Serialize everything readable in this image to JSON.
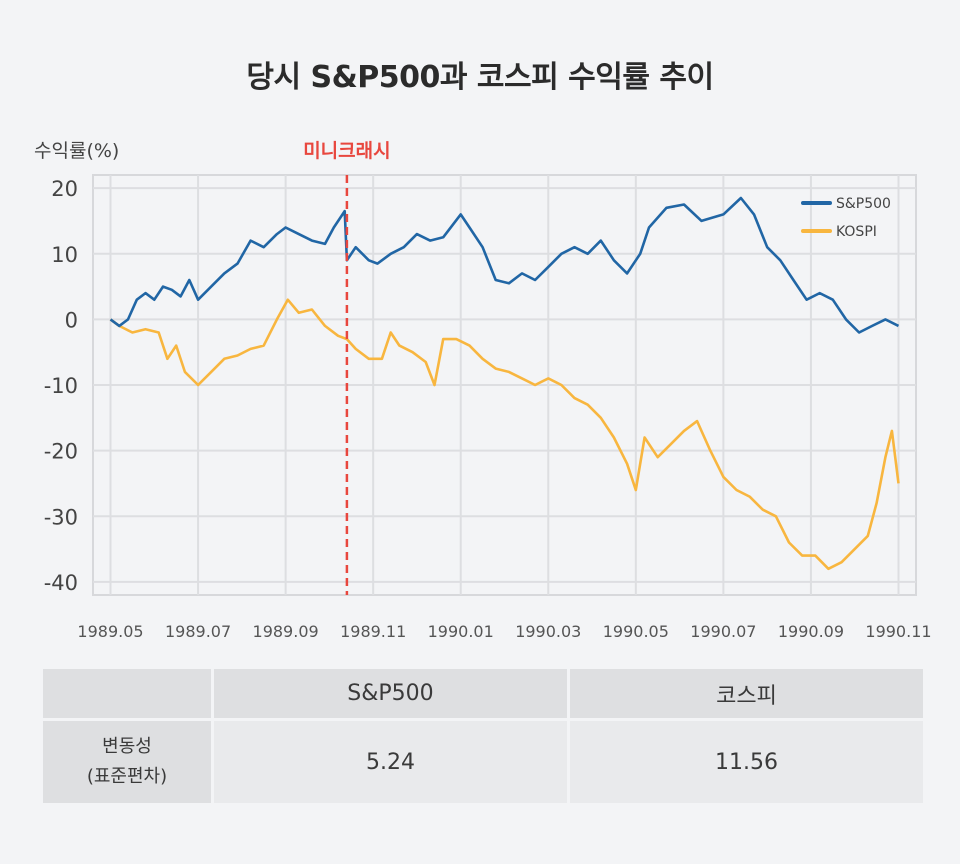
{
  "title": "당시 S&P500과 코스피 수익률 추이",
  "chart_data": {
    "type": "line",
    "ylabel": "수익률(%)",
    "ylim": [
      -42,
      22
    ],
    "yticks": [
      20,
      10,
      0,
      -10,
      -20,
      -30,
      -40
    ],
    "xlim": [
      -0.4,
      18.4
    ],
    "xticks": [
      {
        "value": 0,
        "label": "1989.05"
      },
      {
        "value": 2,
        "label": "1989.07"
      },
      {
        "value": 4,
        "label": "1989.09"
      },
      {
        "value": 6,
        "label": "1989.11"
      },
      {
        "value": 8,
        "label": "1990.01"
      },
      {
        "value": 10,
        "label": "1990.03"
      },
      {
        "value": 12,
        "label": "1990.05"
      },
      {
        "value": 14,
        "label": "1990.07"
      },
      {
        "value": 16,
        "label": "1990.09"
      },
      {
        "value": 18,
        "label": "1990.11"
      }
    ],
    "grid": true,
    "legend_position": "top-right",
    "annotation": {
      "x": 5.4,
      "label": "미니크래시",
      "color": "#e8473e"
    },
    "series": [
      {
        "name": "S&P500",
        "color": "#2166a5",
        "points": [
          [
            0,
            0
          ],
          [
            0.2,
            -1
          ],
          [
            0.4,
            0
          ],
          [
            0.6,
            3
          ],
          [
            0.8,
            4
          ],
          [
            1,
            3
          ],
          [
            1.2,
            5
          ],
          [
            1.4,
            4.5
          ],
          [
            1.6,
            3.5
          ],
          [
            1.8,
            6
          ],
          [
            2,
            3
          ],
          [
            2.3,
            5
          ],
          [
            2.6,
            7
          ],
          [
            2.9,
            8.5
          ],
          [
            3.2,
            12
          ],
          [
            3.5,
            11
          ],
          [
            3.8,
            13
          ],
          [
            4,
            14
          ],
          [
            4.3,
            13
          ],
          [
            4.6,
            12
          ],
          [
            4.9,
            11.5
          ],
          [
            5.1,
            14
          ],
          [
            5.35,
            16.5
          ],
          [
            5.4,
            9
          ],
          [
            5.6,
            11
          ],
          [
            5.9,
            9
          ],
          [
            6.1,
            8.5
          ],
          [
            6.4,
            10
          ],
          [
            6.7,
            11
          ],
          [
            7,
            13
          ],
          [
            7.3,
            12
          ],
          [
            7.6,
            12.5
          ],
          [
            8,
            16
          ],
          [
            8.2,
            14
          ],
          [
            8.5,
            11
          ],
          [
            8.8,
            6
          ],
          [
            9.1,
            5.5
          ],
          [
            9.4,
            7
          ],
          [
            9.7,
            6
          ],
          [
            10,
            8
          ],
          [
            10.3,
            10
          ],
          [
            10.6,
            11
          ],
          [
            10.9,
            10
          ],
          [
            11.2,
            12
          ],
          [
            11.5,
            9
          ],
          [
            11.8,
            7
          ],
          [
            12.1,
            10
          ],
          [
            12.3,
            14
          ],
          [
            12.7,
            17
          ],
          [
            13.1,
            17.5
          ],
          [
            13.5,
            15
          ],
          [
            14,
            16
          ],
          [
            14.4,
            18.5
          ],
          [
            14.7,
            16
          ],
          [
            15,
            11
          ],
          [
            15.3,
            9
          ],
          [
            15.6,
            6
          ],
          [
            15.9,
            3
          ],
          [
            16.2,
            4
          ],
          [
            16.5,
            3
          ],
          [
            16.8,
            0
          ],
          [
            17.1,
            -2
          ],
          [
            17.4,
            -1
          ],
          [
            17.7,
            0
          ],
          [
            18,
            -1
          ]
        ]
      },
      {
        "name": "KOSPI",
        "color": "#f8b63f",
        "points": [
          [
            0,
            0
          ],
          [
            0.2,
            -1
          ],
          [
            0.5,
            -2
          ],
          [
            0.8,
            -1.5
          ],
          [
            1.1,
            -2
          ],
          [
            1.3,
            -6
          ],
          [
            1.5,
            -4
          ],
          [
            1.7,
            -8
          ],
          [
            2,
            -10
          ],
          [
            2.3,
            -8
          ],
          [
            2.6,
            -6
          ],
          [
            2.9,
            -5.5
          ],
          [
            3.2,
            -4.5
          ],
          [
            3.5,
            -4
          ],
          [
            3.8,
            0
          ],
          [
            4.05,
            3
          ],
          [
            4.3,
            1
          ],
          [
            4.6,
            1.5
          ],
          [
            4.9,
            -1
          ],
          [
            5.2,
            -2.5
          ],
          [
            5.4,
            -3
          ],
          [
            5.6,
            -4.5
          ],
          [
            5.9,
            -6
          ],
          [
            6.2,
            -6
          ],
          [
            6.4,
            -2
          ],
          [
            6.6,
            -4
          ],
          [
            6.9,
            -5
          ],
          [
            7.2,
            -6.5
          ],
          [
            7.4,
            -10
          ],
          [
            7.6,
            -3
          ],
          [
            7.9,
            -3
          ],
          [
            8.2,
            -4
          ],
          [
            8.5,
            -6
          ],
          [
            8.8,
            -7.5
          ],
          [
            9.1,
            -8
          ],
          [
            9.4,
            -9
          ],
          [
            9.7,
            -10
          ],
          [
            10,
            -9
          ],
          [
            10.3,
            -10
          ],
          [
            10.6,
            -12
          ],
          [
            10.9,
            -13
          ],
          [
            11.2,
            -15
          ],
          [
            11.5,
            -18
          ],
          [
            11.8,
            -22
          ],
          [
            12,
            -26
          ],
          [
            12.2,
            -18
          ],
          [
            12.5,
            -21
          ],
          [
            12.8,
            -19
          ],
          [
            13.1,
            -17
          ],
          [
            13.4,
            -15.5
          ],
          [
            13.7,
            -20
          ],
          [
            14,
            -24
          ],
          [
            14.3,
            -26
          ],
          [
            14.6,
            -27
          ],
          [
            14.9,
            -29
          ],
          [
            15.2,
            -30
          ],
          [
            15.5,
            -34
          ],
          [
            15.8,
            -36
          ],
          [
            16.1,
            -36
          ],
          [
            16.4,
            -38
          ],
          [
            16.7,
            -37
          ],
          [
            17,
            -35
          ],
          [
            17.3,
            -33
          ],
          [
            17.5,
            -28
          ],
          [
            17.7,
            -21
          ],
          [
            17.85,
            -17
          ],
          [
            18,
            -25
          ]
        ]
      }
    ]
  },
  "stats_table": {
    "headers": [
      "",
      "S&P500",
      "코스피"
    ],
    "row_label_line1": "변동성",
    "row_label_line2": "(표준편차)",
    "values": [
      "5.24",
      "11.56"
    ]
  }
}
